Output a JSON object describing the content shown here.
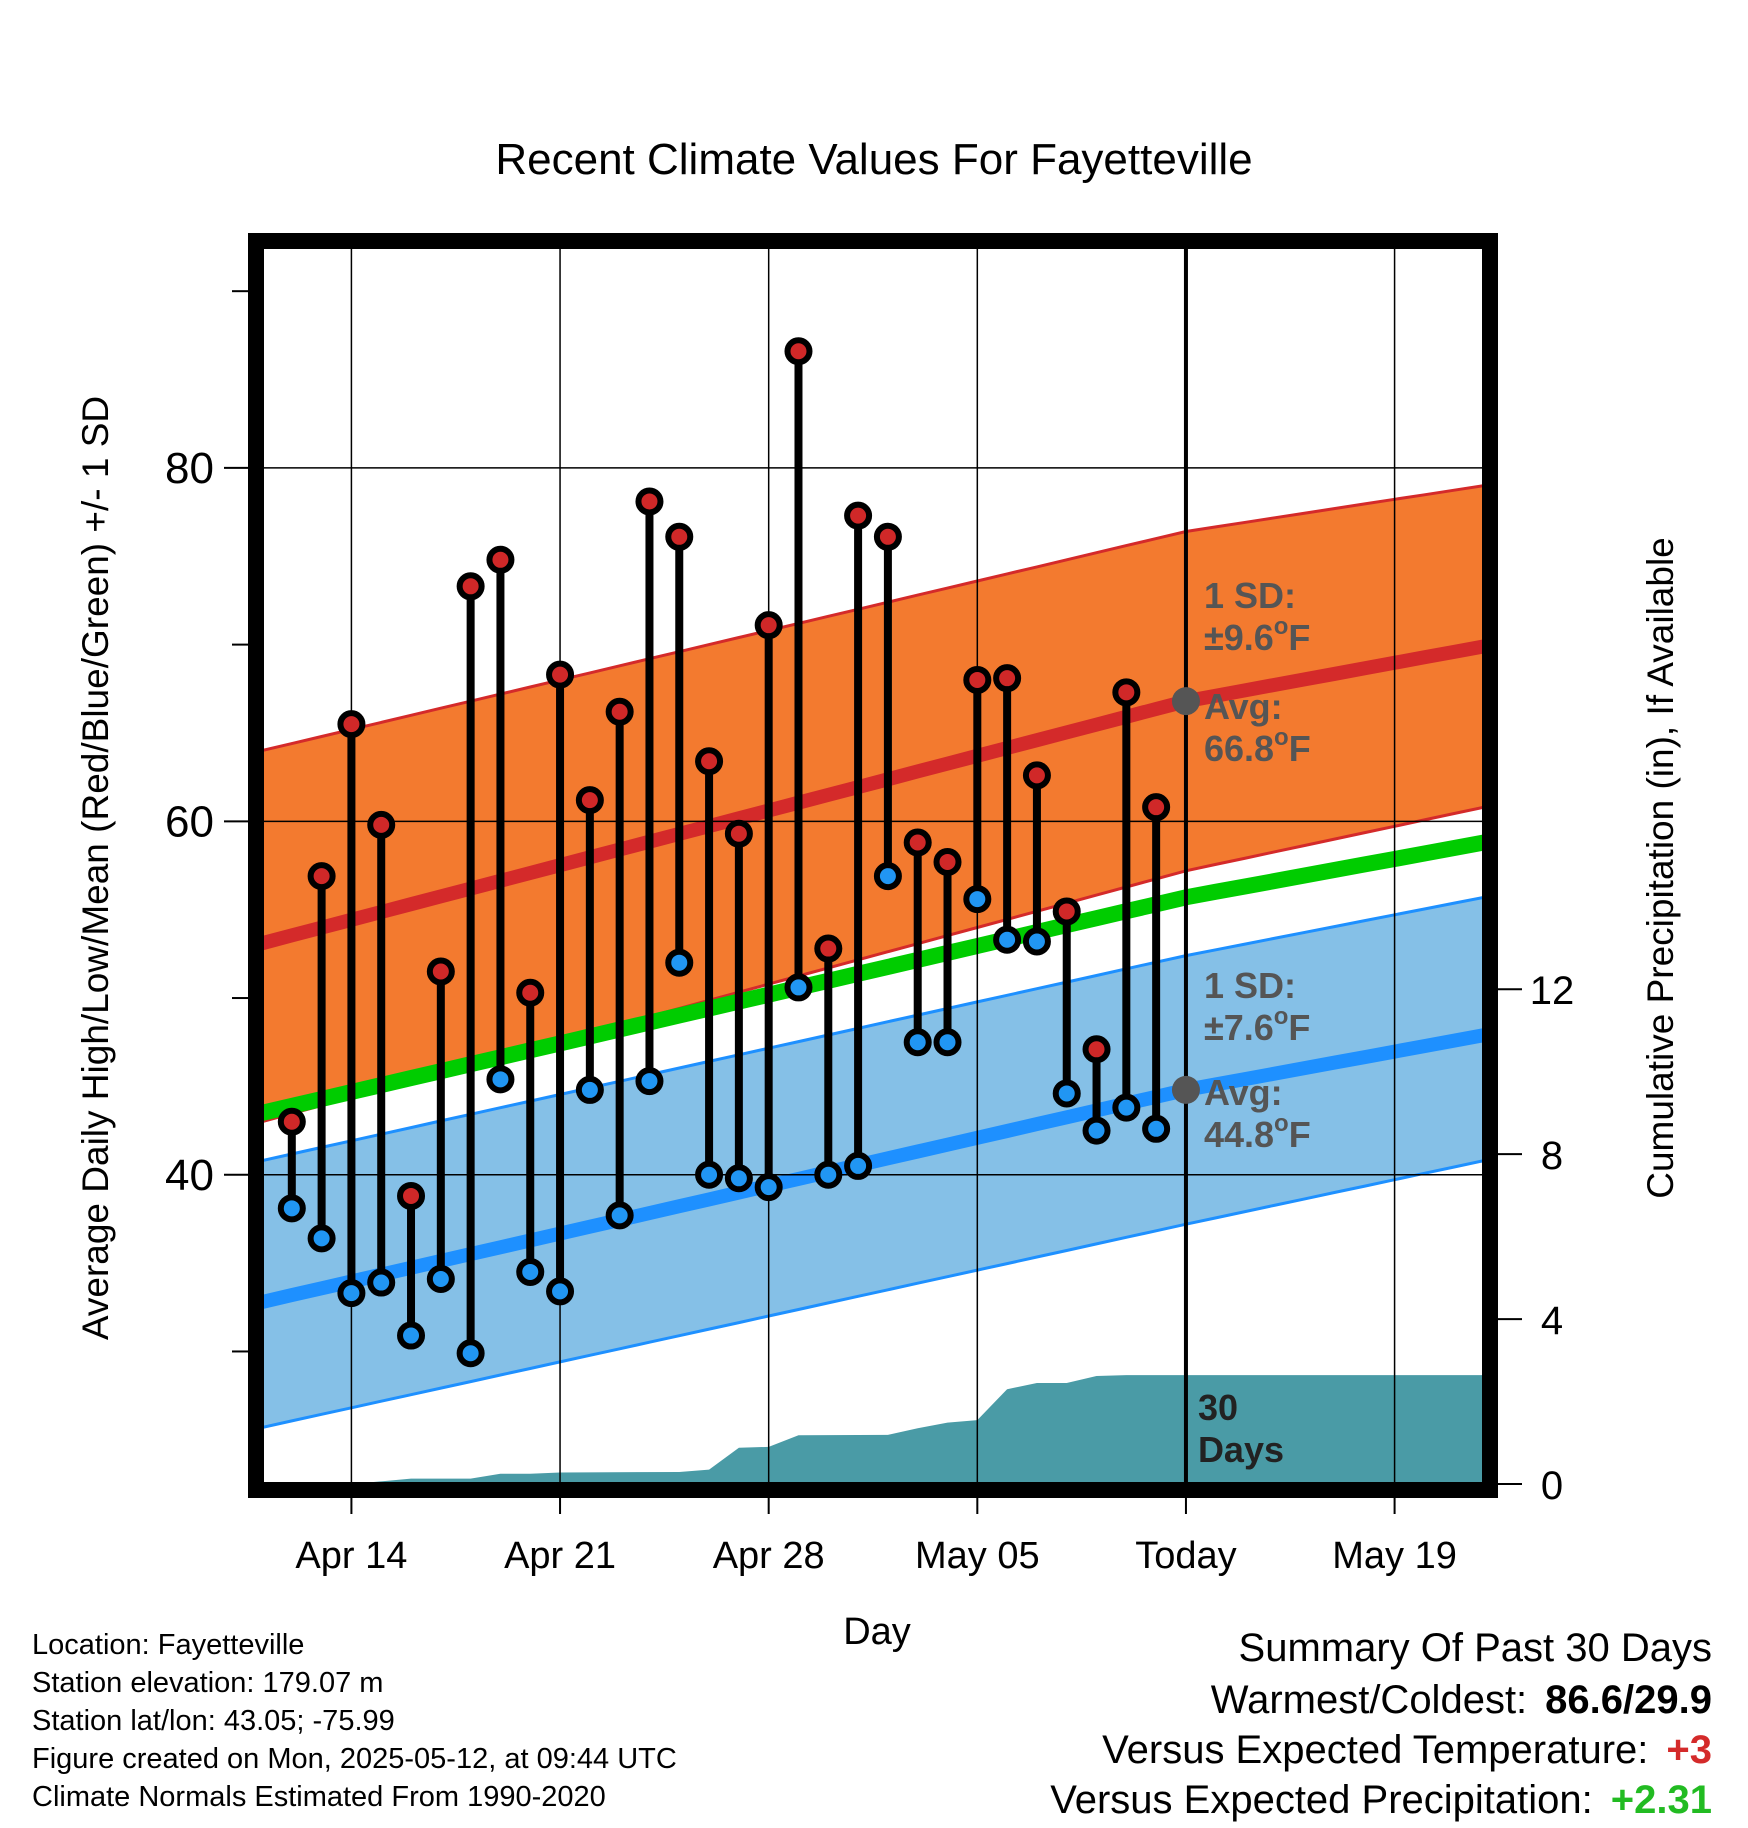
{
  "chart_data": {
    "type": "line",
    "title": "Recent Climate Values For Fayetteville",
    "xlabel": "Day",
    "ylabel": "Average Daily High/Low/Mean (Red/Blue/Green) +/- 1 SD",
    "y2label": "Cumulative Precipitation (in), If Available",
    "x_ticks": [
      "Apr 14",
      "Apr 21",
      "Apr 28",
      "May 05",
      "Today",
      "May 19"
    ],
    "ylim": [
      22.5,
      92.5
    ],
    "y_ticks": [
      40,
      60,
      80
    ],
    "y2lim": [
      0,
      30
    ],
    "y2_ticks": [
      0,
      4,
      8,
      12
    ],
    "x_range": [
      "2025-04-11",
      "2025-05-22"
    ],
    "today": "2025-05-12",
    "today_label": [
      "30",
      "Days"
    ],
    "daily_highs": [
      {
        "date": "2025-04-12",
        "value": 43.0
      },
      {
        "date": "2025-04-13",
        "value": 56.9
      },
      {
        "date": "2025-04-14",
        "value": 65.5
      },
      {
        "date": "2025-04-15",
        "value": 59.8
      },
      {
        "date": "2025-04-16",
        "value": 38.8
      },
      {
        "date": "2025-04-17",
        "value": 51.5
      },
      {
        "date": "2025-04-18",
        "value": 73.3
      },
      {
        "date": "2025-04-19",
        "value": 74.8
      },
      {
        "date": "2025-04-20",
        "value": 50.3
      },
      {
        "date": "2025-04-21",
        "value": 68.3
      },
      {
        "date": "2025-04-22",
        "value": 61.2
      },
      {
        "date": "2025-04-23",
        "value": 66.2
      },
      {
        "date": "2025-04-24",
        "value": 78.1
      },
      {
        "date": "2025-04-25",
        "value": 76.1
      },
      {
        "date": "2025-04-26",
        "value": 63.4
      },
      {
        "date": "2025-04-27",
        "value": 59.3
      },
      {
        "date": "2025-04-28",
        "value": 71.1
      },
      {
        "date": "2025-04-29",
        "value": 86.6
      },
      {
        "date": "2025-04-30",
        "value": 52.8
      },
      {
        "date": "2025-05-01",
        "value": 77.3
      },
      {
        "date": "2025-05-02",
        "value": 76.1
      },
      {
        "date": "2025-05-03",
        "value": 58.8
      },
      {
        "date": "2025-05-04",
        "value": 57.7
      },
      {
        "date": "2025-05-05",
        "value": 68.0
      },
      {
        "date": "2025-05-06",
        "value": 68.1
      },
      {
        "date": "2025-05-07",
        "value": 62.6
      },
      {
        "date": "2025-05-08",
        "value": 54.9
      },
      {
        "date": "2025-05-09",
        "value": 47.1
      },
      {
        "date": "2025-05-10",
        "value": 67.3
      },
      {
        "date": "2025-05-11",
        "value": 60.8
      }
    ],
    "daily_lows": [
      {
        "date": "2025-04-12",
        "value": 38.1
      },
      {
        "date": "2025-04-13",
        "value": 36.4
      },
      {
        "date": "2025-04-14",
        "value": 33.3
      },
      {
        "date": "2025-04-15",
        "value": 33.9
      },
      {
        "date": "2025-04-16",
        "value": 30.9
      },
      {
        "date": "2025-04-17",
        "value": 34.1
      },
      {
        "date": "2025-04-18",
        "value": 29.9
      },
      {
        "date": "2025-04-19",
        "value": 45.4
      },
      {
        "date": "2025-04-20",
        "value": 34.5
      },
      {
        "date": "2025-04-21",
        "value": 33.4
      },
      {
        "date": "2025-04-22",
        "value": 44.8
      },
      {
        "date": "2025-04-23",
        "value": 37.7
      },
      {
        "date": "2025-04-24",
        "value": 45.3
      },
      {
        "date": "2025-04-25",
        "value": 52.0
      },
      {
        "date": "2025-04-26",
        "value": 40.0
      },
      {
        "date": "2025-04-27",
        "value": 39.8
      },
      {
        "date": "2025-04-28",
        "value": 39.3
      },
      {
        "date": "2025-04-29",
        "value": 50.6
      },
      {
        "date": "2025-04-30",
        "value": 40.0
      },
      {
        "date": "2025-05-01",
        "value": 40.5
      },
      {
        "date": "2025-05-02",
        "value": 56.9
      },
      {
        "date": "2025-05-03",
        "value": 47.5
      },
      {
        "date": "2025-05-04",
        "value": 47.5
      },
      {
        "date": "2025-05-05",
        "value": 55.6
      },
      {
        "date": "2025-05-06",
        "value": 53.3
      },
      {
        "date": "2025-05-07",
        "value": 53.2
      },
      {
        "date": "2025-05-08",
        "value": 44.6
      },
      {
        "date": "2025-05-09",
        "value": 42.5
      },
      {
        "date": "2025-05-10",
        "value": 43.8
      },
      {
        "date": "2025-05-11",
        "value": 42.6
      }
    ],
    "normal_high": {
      "avg": [
        {
          "date": "2025-04-11",
          "value": 53.1
        },
        {
          "date": "2025-05-12",
          "value": 66.8
        },
        {
          "date": "2025-05-22",
          "value": 69.9
        }
      ],
      "upper": [
        {
          "date": "2025-04-11",
          "value": 64.0
        },
        {
          "date": "2025-05-12",
          "value": 76.4
        },
        {
          "date": "2025-05-22",
          "value": 79.0
        }
      ],
      "lower": [
        {
          "date": "2025-04-11",
          "value": 43.0
        },
        {
          "date": "2025-05-12",
          "value": 57.2
        },
        {
          "date": "2025-05-22",
          "value": 60.8
        }
      ]
    },
    "normal_mean": [
      {
        "date": "2025-04-11",
        "value": 43.5
      },
      {
        "date": "2025-05-12",
        "value": 55.7
      },
      {
        "date": "2025-05-22",
        "value": 58.8
      }
    ],
    "normal_low": {
      "avg": [
        {
          "date": "2025-04-11",
          "value": 32.8
        },
        {
          "date": "2025-05-12",
          "value": 44.8
        },
        {
          "date": "2025-05-22",
          "value": 47.9
        }
      ],
      "upper": [
        {
          "date": "2025-04-11",
          "value": 40.8
        },
        {
          "date": "2025-05-12",
          "value": 52.4
        },
        {
          "date": "2025-05-22",
          "value": 55.7
        }
      ],
      "lower": [
        {
          "date": "2025-04-11",
          "value": 25.7
        },
        {
          "date": "2025-05-12",
          "value": 37.2
        },
        {
          "date": "2025-05-22",
          "value": 40.8
        }
      ]
    },
    "cumulative_precip": [
      {
        "date": "2025-04-14",
        "value": 0.0
      },
      {
        "date": "2025-04-16",
        "value": 0.13
      },
      {
        "date": "2025-04-18",
        "value": 0.13
      },
      {
        "date": "2025-04-19",
        "value": 0.25
      },
      {
        "date": "2025-04-20",
        "value": 0.25
      },
      {
        "date": "2025-04-21",
        "value": 0.28
      },
      {
        "date": "2025-04-25",
        "value": 0.29
      },
      {
        "date": "2025-04-26",
        "value": 0.35
      },
      {
        "date": "2025-04-27",
        "value": 0.88
      },
      {
        "date": "2025-04-28",
        "value": 0.9
      },
      {
        "date": "2025-04-29",
        "value": 1.18
      },
      {
        "date": "2025-05-02",
        "value": 1.19
      },
      {
        "date": "2025-05-03",
        "value": 1.35
      },
      {
        "date": "2025-05-04",
        "value": 1.49
      },
      {
        "date": "2025-05-05",
        "value": 1.55
      },
      {
        "date": "2025-05-06",
        "value": 2.3
      },
      {
        "date": "2025-05-07",
        "value": 2.45
      },
      {
        "date": "2025-05-08",
        "value": 2.45
      },
      {
        "date": "2025-05-09",
        "value": 2.62
      },
      {
        "date": "2025-05-10",
        "value": 2.64
      },
      {
        "date": "2025-05-22",
        "value": 2.64
      }
    ],
    "annotations": {
      "high": {
        "sd_label": "1 SD:",
        "sd_value": "±9.6",
        "avg_label": "Avg:",
        "avg_value": "66.8",
        "unit": "F",
        "deg": "o"
      },
      "low": {
        "sd_label": "1 SD:",
        "sd_value": "±7.6",
        "avg_label": "Avg:",
        "avg_value": "44.8",
        "unit": "F",
        "deg": "o"
      }
    },
    "colors": {
      "high_band": "#f37a2f",
      "high_line": "#d42a2a",
      "mean_line": "#00cc00",
      "low_band": "#85c0e7",
      "low_line": "#1e90ff",
      "precip": "#4a9ba6",
      "high_dot": "#d02828",
      "low_dot": "#2196f3",
      "annotation": "#555555",
      "warm": "#d42a2a",
      "wet": "#22bb22"
    }
  },
  "info": {
    "location": "Location: Fayetteville",
    "elevation": "Station elevation: 179.07 m",
    "latlon": "Station lat/lon: 43.05; -75.99",
    "created": "Figure created on Mon, 2025-05-12, at 09:44 UTC",
    "normals": "Climate Normals Estimated From 1990-2020"
  },
  "summary": {
    "title": "Summary Of Past 30 Days",
    "warmest_coldest_label": "Warmest/Coldest:",
    "warmest_coldest_value": "86.6/29.9",
    "temp_label": "Versus Expected Temperature:",
    "temp_value": "+3",
    "precip_label": "Versus Expected Precipitation:",
    "precip_value": "+2.31"
  }
}
